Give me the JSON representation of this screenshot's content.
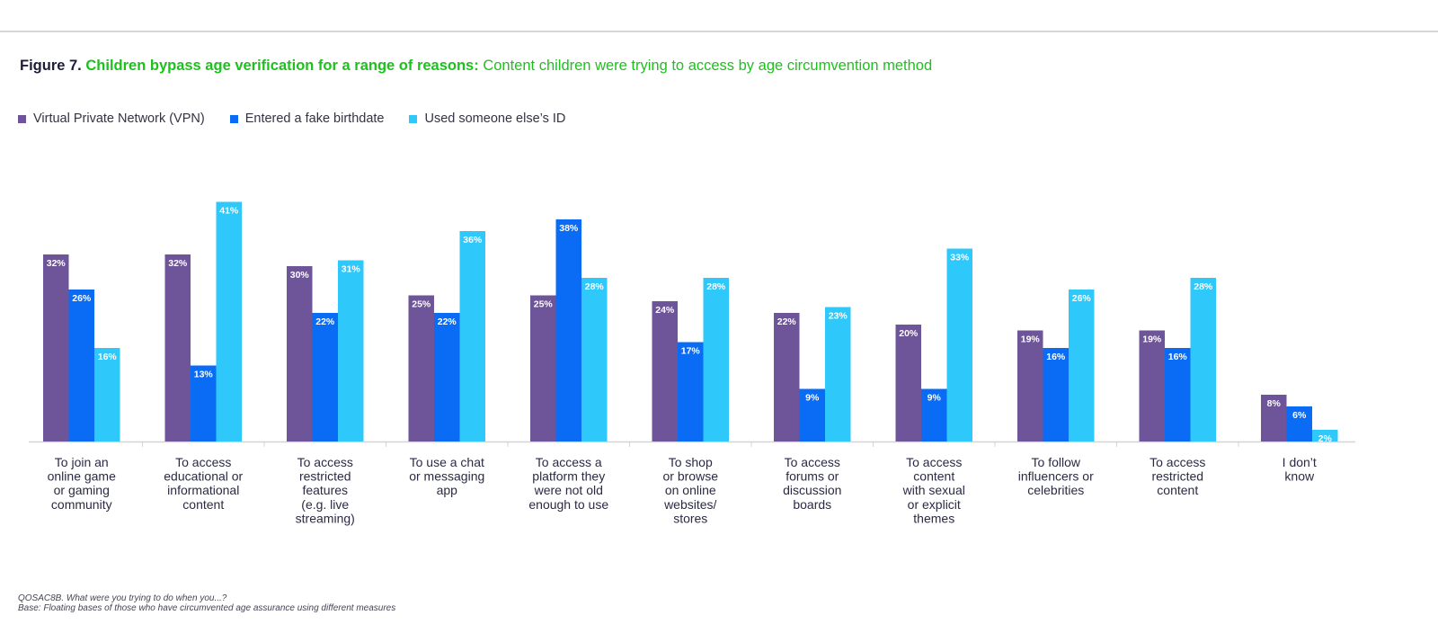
{
  "figure": {
    "label": "Figure 7.",
    "headline": "Children bypass age verification for a range of reasons:",
    "subtitle": "Content children were trying to access by age circumvention method"
  },
  "colors": {
    "vpn": "#6e5499",
    "birthdate": "#0a6cf5",
    "someone_id": "#2ec8fa",
    "headline": "#1ec01e"
  },
  "chart_data": {
    "type": "bar",
    "categories": [
      "To join an online game or gaming community",
      "To access educational or informational content",
      "To access restricted features (e.g. live streaming)",
      "To use a chat or messaging app",
      "To access a platform they were not old enough to use",
      "To shop or browse on online websites/ stores",
      "To access forums or discussion boards",
      "To access content with sexual or explicit themes",
      "To follow influencers or celebrities",
      "To access restricted content",
      "I don’t know"
    ],
    "category_lines": [
      [
        "To join an",
        "online game",
        "or gaming",
        "community"
      ],
      [
        "To access",
        "educational or",
        "informational",
        "content"
      ],
      [
        "To access",
        "restricted",
        "features",
        "(e.g. live",
        "streaming)"
      ],
      [
        "To use a chat",
        "or messaging",
        "app"
      ],
      [
        "To access a",
        "platform they",
        "were not old",
        "enough to use"
      ],
      [
        "To shop",
        "or browse",
        "on online",
        "websites/",
        "stores"
      ],
      [
        "To access",
        "forums or",
        "discussion",
        "boards"
      ],
      [
        "To access",
        "content",
        "with sexual",
        "or explicit",
        "themes"
      ],
      [
        "To follow",
        "influencers or",
        "celebrities"
      ],
      [
        "To access",
        "restricted",
        "content"
      ],
      [
        "I don’t",
        "know"
      ]
    ],
    "series": [
      {
        "name": "Virtual Private Network (VPN)",
        "color": "#6e5499",
        "values": [
          32,
          32,
          30,
          25,
          25,
          24,
          22,
          20,
          19,
          19,
          8
        ]
      },
      {
        "name": "Entered a fake birthdate",
        "color": "#0a6cf5",
        "values": [
          26,
          13,
          22,
          22,
          38,
          17,
          9,
          9,
          16,
          16,
          6
        ]
      },
      {
        "name": "Used someone else’s ID",
        "color": "#2ec8fa",
        "values": [
          16,
          41,
          31,
          36,
          28,
          28,
          23,
          33,
          26,
          28,
          2
        ]
      }
    ],
    "value_suffix": "%",
    "ylim": [
      0,
      42
    ],
    "legend_position": "top-left",
    "grid": false
  },
  "footnotes": {
    "question": "QOSAC8B. What were you trying to do when you...?",
    "base": "Base: Floating bases of those who have circumvented age assurance using different measures"
  }
}
